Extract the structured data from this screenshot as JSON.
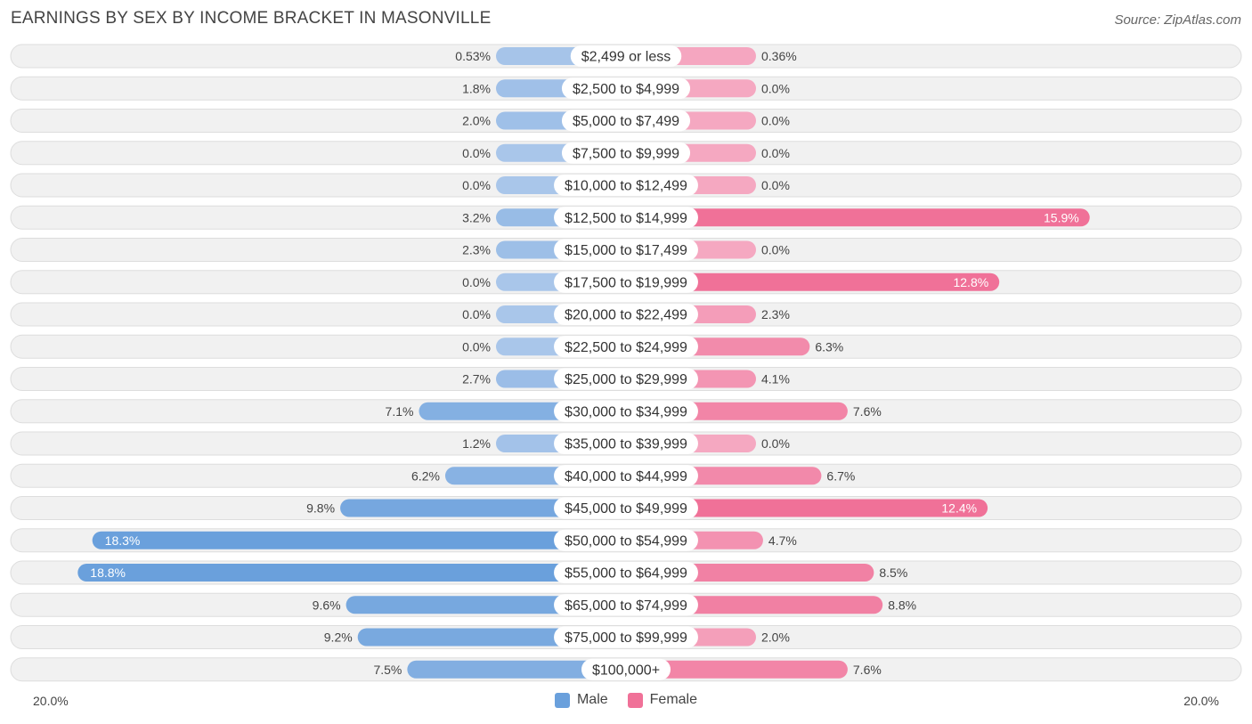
{
  "title": "EARNINGS BY SEX BY INCOME BRACKET IN MASONVILLE",
  "source": "Source: ZipAtlas.com",
  "axis": {
    "left_label": "20.0%",
    "right_label": "20.0%"
  },
  "legend": {
    "male_label": "Male",
    "female_label": "Female"
  },
  "colors": {
    "male_light": "#a9c6ea",
    "male_dark": "#6aa0dc",
    "female_light": "#f5a8c1",
    "female_dark": "#f07198",
    "row_bg": "#f1f1f1",
    "row_border": "#dddddd"
  },
  "chart_data": {
    "type": "bar",
    "title": "EARNINGS BY SEX BY INCOME BRACKET IN MASONVILLE",
    "xlim": [
      -20,
      20
    ],
    "categories": [
      "$2,499 or less",
      "$2,500 to $4,999",
      "$5,000 to $7,499",
      "$7,500 to $9,999",
      "$10,000 to $12,499",
      "$12,500 to $14,999",
      "$15,000 to $17,499",
      "$17,500 to $19,999",
      "$20,000 to $22,499",
      "$22,500 to $24,999",
      "$25,000 to $29,999",
      "$30,000 to $34,999",
      "$35,000 to $39,999",
      "$40,000 to $44,999",
      "$45,000 to $49,999",
      "$50,000 to $54,999",
      "$55,000 to $64,999",
      "$65,000 to $74,999",
      "$75,000 to $99,999",
      "$100,000+"
    ],
    "series": [
      {
        "name": "Male",
        "values": [
          0.53,
          1.8,
          2.0,
          0.0,
          0.0,
          3.2,
          2.3,
          0.0,
          0.0,
          0.0,
          2.7,
          7.1,
          1.2,
          6.2,
          9.8,
          18.3,
          18.8,
          9.6,
          9.2,
          7.5
        ],
        "labels": [
          "0.53%",
          "1.8%",
          "2.0%",
          "0.0%",
          "0.0%",
          "3.2%",
          "2.3%",
          "0.0%",
          "0.0%",
          "0.0%",
          "2.7%",
          "7.1%",
          "1.2%",
          "6.2%",
          "9.8%",
          "18.3%",
          "18.8%",
          "9.6%",
          "9.2%",
          "7.5%"
        ]
      },
      {
        "name": "Female",
        "values": [
          0.36,
          0.0,
          0.0,
          0.0,
          0.0,
          15.9,
          0.0,
          12.8,
          2.3,
          6.3,
          4.1,
          7.6,
          0.0,
          6.7,
          12.4,
          4.7,
          8.5,
          8.8,
          2.0,
          7.6
        ],
        "labels": [
          "0.36%",
          "0.0%",
          "0.0%",
          "0.0%",
          "0.0%",
          "15.9%",
          "0.0%",
          "12.8%",
          "2.3%",
          "6.3%",
          "4.1%",
          "7.6%",
          "0.0%",
          "6.7%",
          "12.4%",
          "4.7%",
          "8.5%",
          "8.8%",
          "2.0%",
          "7.6%"
        ]
      }
    ]
  }
}
